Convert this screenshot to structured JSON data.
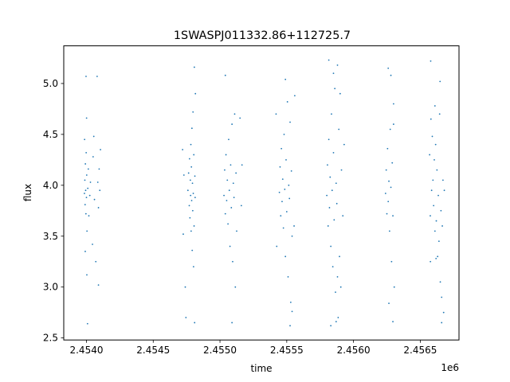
{
  "chart_data": {
    "type": "scatter",
    "title": "1SWASPJ011332.86+112725.7",
    "xlabel": "time",
    "ylabel": "flux",
    "x_offset_label": "1e6",
    "xlim": [
      2453830,
      2456790
    ],
    "ylim": [
      2.48,
      5.37
    ],
    "x_ticks": [
      2.454,
      2.4545,
      2.455,
      2.4555,
      2.456,
      2.4565
    ],
    "x_tick_labels": [
      "2.4540",
      "2.4545",
      "2.4550",
      "2.4555",
      "2.4560",
      "2.4565"
    ],
    "y_ticks": [
      2.5,
      3.0,
      3.5,
      4.0,
      4.5,
      5.0
    ],
    "y_tick_labels": [
      "2.5",
      "3.0",
      "3.5",
      "4.0",
      "4.5",
      "5.0"
    ],
    "grid": false,
    "marker_color": "#1f77b4",
    "series": [
      {
        "points": [
          [
            2453985,
            3.92
          ],
          [
            2453988,
            4.05
          ],
          [
            2453990,
            3.81
          ],
          [
            2453992,
            4.21
          ],
          [
            2453994,
            3.95
          ],
          [
            2453996,
            3.72
          ],
          [
            2453998,
            4.32
          ],
          [
            2454000,
            3.88
          ],
          [
            2454002,
            4.1
          ],
          [
            2454004,
            3.55
          ],
          [
            2453986,
            4.45
          ],
          [
            2453991,
            3.35
          ],
          [
            2453997,
            5.07
          ],
          [
            2454003,
            3.12
          ],
          [
            2454001,
            4.66
          ],
          [
            2454010,
            3.97
          ],
          [
            2454014,
            4.16
          ],
          [
            2454018,
            3.7
          ],
          [
            2454025,
            3.9
          ],
          [
            2454030,
            4.03
          ],
          [
            2454045,
            3.42
          ],
          [
            2454050,
            4.28
          ],
          [
            2454055,
            4.48
          ],
          [
            2454060,
            3.86
          ],
          [
            2454070,
            3.25
          ],
          [
            2454085,
            4.03
          ],
          [
            2454090,
            3.78
          ],
          [
            2454095,
            4.16
          ],
          [
            2454100,
            3.95
          ],
          [
            2454105,
            4.35
          ],
          [
            2454008,
            2.64
          ],
          [
            2454080,
            5.07
          ],
          [
            2454090,
            3.02
          ],
          [
            2454760,
            3.95
          ],
          [
            2454765,
            4.12
          ],
          [
            2454770,
            3.8
          ],
          [
            2454772,
            4.26
          ],
          [
            2454775,
            3.68
          ],
          [
            2454778,
            4.05
          ],
          [
            2454780,
            3.9
          ],
          [
            2454782,
            4.4
          ],
          [
            2454784,
            3.55
          ],
          [
            2454786,
            4.18
          ],
          [
            2454788,
            3.85
          ],
          [
            2454790,
            4.56
          ],
          [
            2454792,
            3.36
          ],
          [
            2454794,
            4.02
          ],
          [
            2454796,
            3.75
          ],
          [
            2454798,
            4.72
          ],
          [
            2454800,
            3.92
          ],
          [
            2454802,
            3.2
          ],
          [
            2454804,
            4.3
          ],
          [
            2454806,
            3.6
          ],
          [
            2454808,
            5.16
          ],
          [
            2454810,
            2.65
          ],
          [
            2454812,
            4.09
          ],
          [
            2454814,
            3.88
          ],
          [
            2454816,
            4.9
          ],
          [
            2454720,
            4.35
          ],
          [
            2454725,
            3.52
          ],
          [
            2454730,
            4.1
          ],
          [
            2454740,
            3.0
          ],
          [
            2454745,
            2.7
          ],
          [
            2455030,
            3.9
          ],
          [
            2455035,
            4.15
          ],
          [
            2455040,
            3.72
          ],
          [
            2455045,
            4.3
          ],
          [
            2455050,
            3.85
          ],
          [
            2455055,
            4.05
          ],
          [
            2455060,
            3.62
          ],
          [
            2455065,
            4.45
          ],
          [
            2455070,
            3.95
          ],
          [
            2455075,
            3.4
          ],
          [
            2455080,
            4.2
          ],
          [
            2455085,
            3.78
          ],
          [
            2455090,
            4.6
          ],
          [
            2455095,
            3.25
          ],
          [
            2455100,
            4.02
          ],
          [
            2455105,
            3.88
          ],
          [
            2455110,
            4.7
          ],
          [
            2455115,
            3.0
          ],
          [
            2455120,
            4.12
          ],
          [
            2455125,
            3.55
          ],
          [
            2455040,
            5.08
          ],
          [
            2455090,
            2.65
          ],
          [
            2455150,
            4.66
          ],
          [
            2455160,
            3.8
          ],
          [
            2455165,
            4.2
          ],
          [
            2455445,
            3.93
          ],
          [
            2455450,
            4.18
          ],
          [
            2455455,
            3.7
          ],
          [
            2455460,
            4.36
          ],
          [
            2455465,
            3.84
          ],
          [
            2455470,
            4.06
          ],
          [
            2455475,
            3.58
          ],
          [
            2455480,
            4.5
          ],
          [
            2455485,
            3.96
          ],
          [
            2455490,
            3.3
          ],
          [
            2455495,
            4.25
          ],
          [
            2455500,
            3.74
          ],
          [
            2455505,
            4.82
          ],
          [
            2455510,
            3.1
          ],
          [
            2455515,
            4.0
          ],
          [
            2455520,
            3.87
          ],
          [
            2455525,
            4.62
          ],
          [
            2455530,
            2.85
          ],
          [
            2455535,
            4.14
          ],
          [
            2455540,
            3.5
          ],
          [
            2455420,
            4.7
          ],
          [
            2455425,
            3.4
          ],
          [
            2455490,
            5.04
          ],
          [
            2455525,
            2.62
          ],
          [
            2455560,
            4.88
          ],
          [
            2455540,
            2.76
          ],
          [
            2455555,
            3.6
          ],
          [
            2455800,
            3.9
          ],
          [
            2455805,
            4.2
          ],
          [
            2455810,
            3.6
          ],
          [
            2455815,
            4.45
          ],
          [
            2455820,
            3.78
          ],
          [
            2455825,
            4.08
          ],
          [
            2455830,
            3.4
          ],
          [
            2455835,
            4.7
          ],
          [
            2455840,
            3.95
          ],
          [
            2455845,
            3.2
          ],
          [
            2455850,
            4.32
          ],
          [
            2455855,
            3.66
          ],
          [
            2455860,
            4.95
          ],
          [
            2455865,
            2.95
          ],
          [
            2455870,
            4.02
          ],
          [
            2455875,
            3.82
          ],
          [
            2455880,
            5.18
          ],
          [
            2455885,
            2.7
          ],
          [
            2455890,
            4.55
          ],
          [
            2455895,
            3.3
          ],
          [
            2455815,
            5.23
          ],
          [
            2455830,
            2.62
          ],
          [
            2455850,
            5.1
          ],
          [
            2455870,
            2.66
          ],
          [
            2455900,
            4.9
          ],
          [
            2455905,
            3.0
          ],
          [
            2455910,
            4.15
          ],
          [
            2455920,
            3.7
          ],
          [
            2455930,
            4.4
          ],
          [
            2455880,
            3.1
          ],
          [
            2456240,
            3.92
          ],
          [
            2456245,
            4.15
          ],
          [
            2456250,
            3.72
          ],
          [
            2456255,
            4.36
          ],
          [
            2456260,
            3.84
          ],
          [
            2456265,
            4.04
          ],
          [
            2456270,
            3.55
          ],
          [
            2456275,
            4.55
          ],
          [
            2456280,
            3.98
          ],
          [
            2456285,
            3.25
          ],
          [
            2456290,
            4.22
          ],
          [
            2456295,
            3.7
          ],
          [
            2456300,
            4.8
          ],
          [
            2456305,
            3.0
          ],
          [
            2456260,
            5.15
          ],
          [
            2456265,
            2.84
          ],
          [
            2456280,
            5.08
          ],
          [
            2456295,
            2.66
          ],
          [
            2456300,
            4.6
          ],
          [
            2456570,
            4.3
          ],
          [
            2456575,
            3.7
          ],
          [
            2456580,
            4.65
          ],
          [
            2456585,
            3.95
          ],
          [
            2456590,
            4.48
          ],
          [
            2456595,
            4.05
          ],
          [
            2456600,
            3.8
          ],
          [
            2456605,
            4.25
          ],
          [
            2456610,
            3.55
          ],
          [
            2456615,
            4.4
          ],
          [
            2456620,
            3.65
          ],
          [
            2456625,
            4.15
          ],
          [
            2456630,
            3.3
          ],
          [
            2456635,
            3.9
          ],
          [
            2456640,
            3.45
          ],
          [
            2456645,
            4.7
          ],
          [
            2456650,
            3.05
          ],
          [
            2456655,
            3.75
          ],
          [
            2456660,
            2.9
          ],
          [
            2456665,
            3.6
          ],
          [
            2456670,
            4.05
          ],
          [
            2456675,
            2.75
          ],
          [
            2456680,
            3.95
          ],
          [
            2456578,
            5.22
          ],
          [
            2456576,
            3.25
          ],
          [
            2456648,
            5.02
          ],
          [
            2456660,
            2.65
          ],
          [
            2456618,
            3.28
          ],
          [
            2456610,
            4.78
          ]
        ]
      }
    ]
  }
}
